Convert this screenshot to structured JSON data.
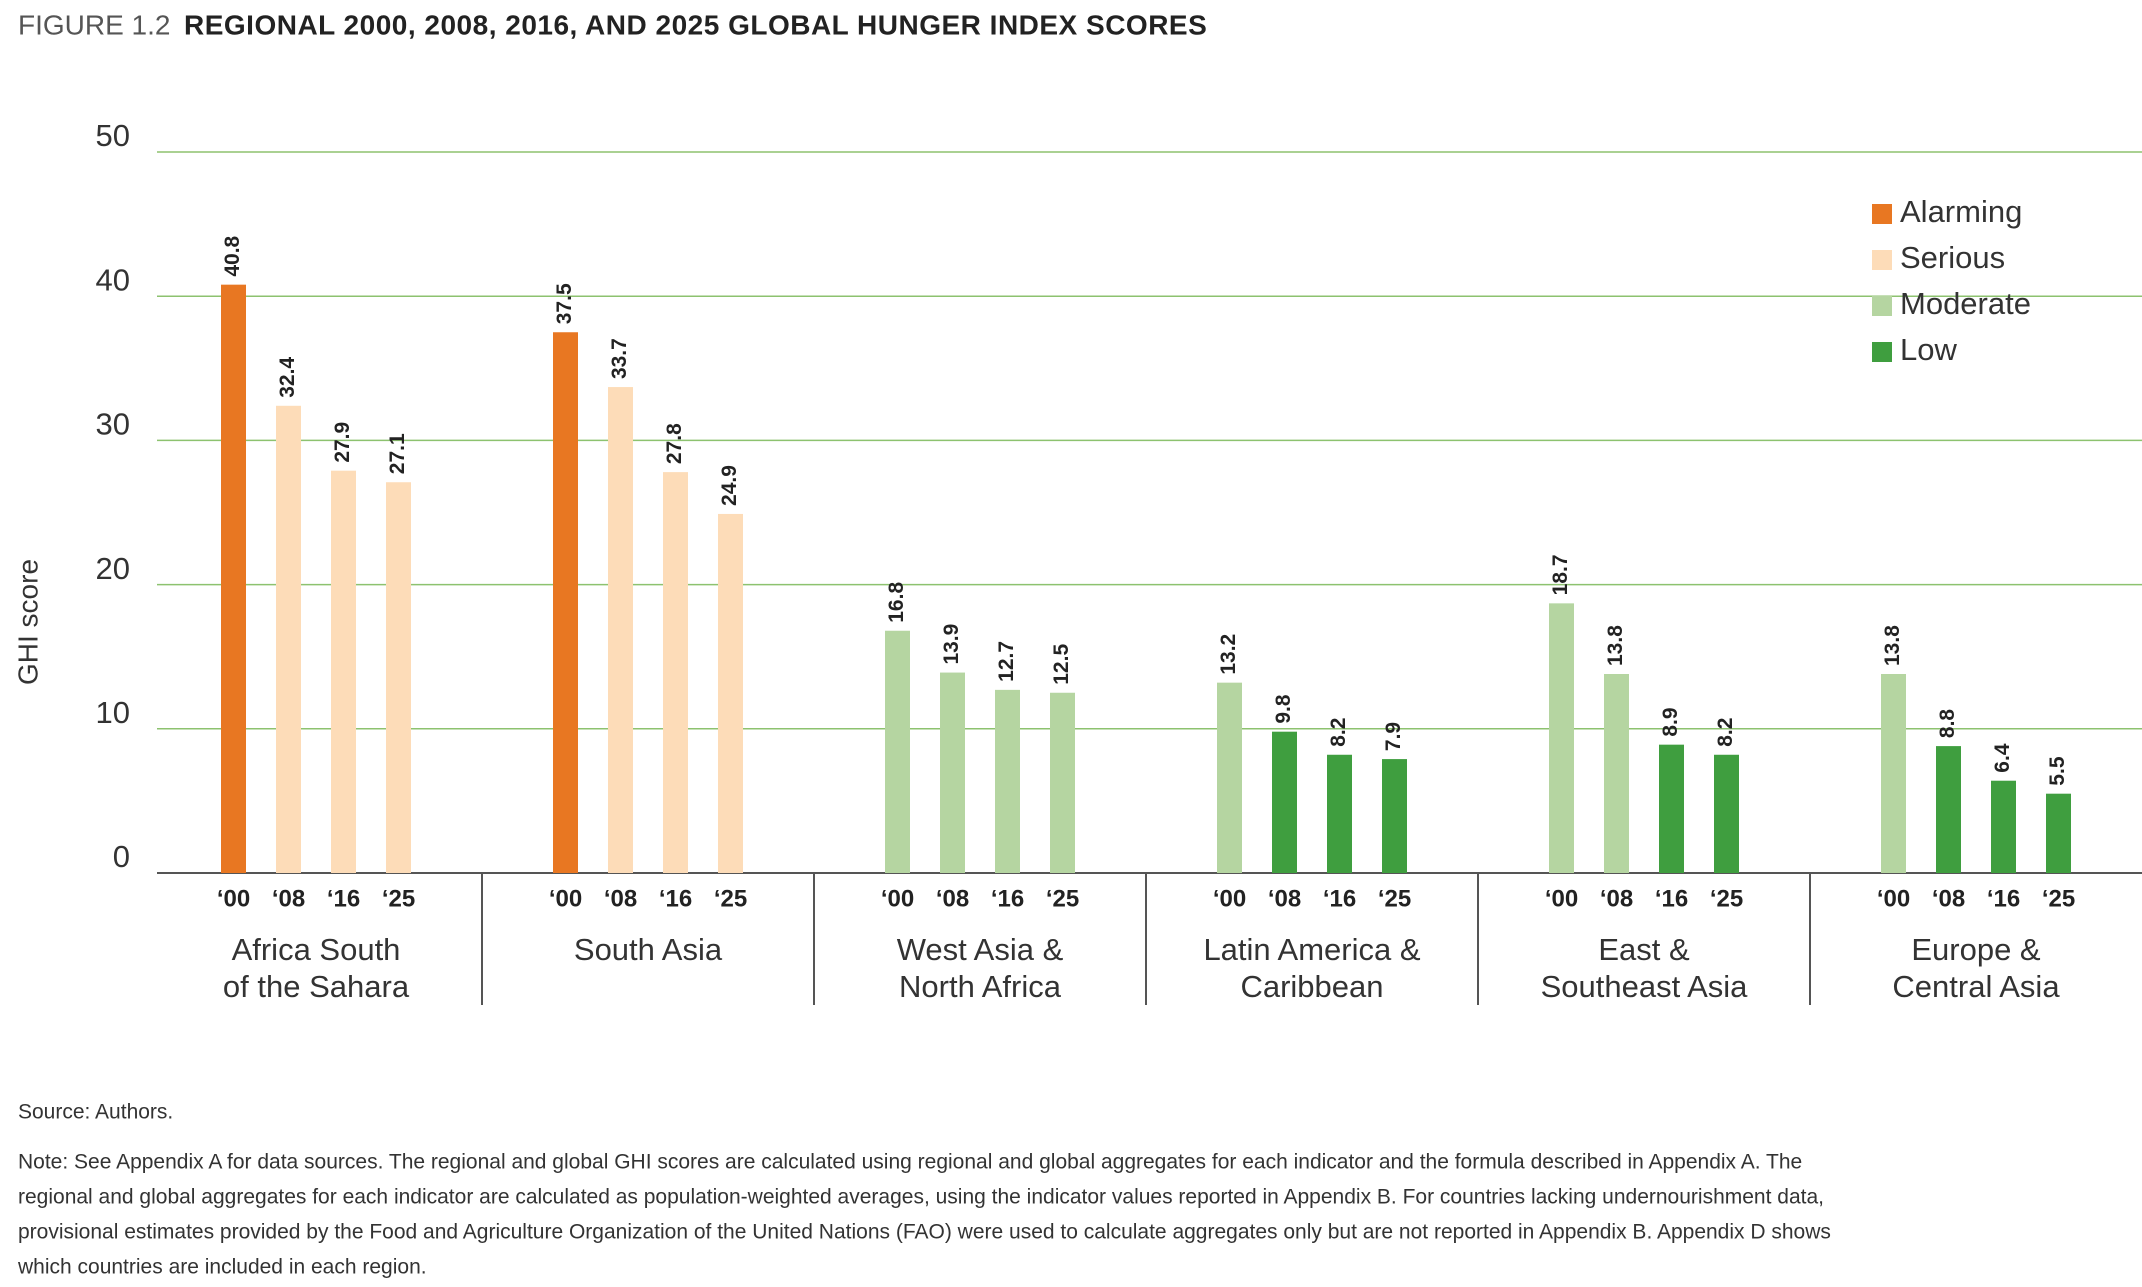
{
  "chart_data": {
    "type": "bar",
    "figure_label": "FIGURE 1.2",
    "title": "REGIONAL 2000, 2008, 2016, AND 2025 GLOBAL HUNGER INDEX SCORES",
    "y_label": "GHI score",
    "ylim": [
      0,
      50
    ],
    "yticks": [
      0,
      10,
      20,
      30,
      40,
      50
    ],
    "grid": true,
    "grid_color": "#8dc26f",
    "years": [
      "‘00",
      "‘08",
      "‘16",
      "‘25"
    ],
    "groups": [
      {
        "label": [
          "Africa South",
          "of the Sahara"
        ],
        "values": [
          40.8,
          32.4,
          27.9,
          27.1
        ],
        "colors": [
          "#e87722",
          "#fddcb8",
          "#fddcb8",
          "#fddcb8"
        ]
      },
      {
        "label": [
          "South Asia"
        ],
        "values": [
          37.5,
          33.7,
          27.8,
          24.9
        ],
        "colors": [
          "#e87722",
          "#fddcb8",
          "#fddcb8",
          "#fddcb8"
        ]
      },
      {
        "label": [
          "West Asia &",
          "North Africa"
        ],
        "values": [
          16.8,
          13.9,
          12.7,
          12.5
        ],
        "colors": [
          "#b5d5a1",
          "#b5d5a1",
          "#b5d5a1",
          "#b5d5a1"
        ]
      },
      {
        "label": [
          "Latin America &",
          "Caribbean"
        ],
        "values": [
          13.2,
          9.8,
          8.2,
          7.9
        ],
        "colors": [
          "#b5d5a1",
          "#3f9e3f",
          "#3f9e3f",
          "#3f9e3f"
        ]
      },
      {
        "label": [
          "East &",
          "Southeast Asia"
        ],
        "values": [
          18.7,
          13.8,
          8.9,
          8.2
        ],
        "colors": [
          "#b5d5a1",
          "#b5d5a1",
          "#3f9e3f",
          "#3f9e3f"
        ]
      },
      {
        "label": [
          "Europe &",
          "Central Asia"
        ],
        "values": [
          13.8,
          8.8,
          6.4,
          5.5
        ],
        "colors": [
          "#b5d5a1",
          "#3f9e3f",
          "#3f9e3f",
          "#3f9e3f"
        ]
      }
    ],
    "legend_position": "upper right",
    "legend": [
      {
        "name": "Alarming",
        "color": "#e87722"
      },
      {
        "name": "Serious",
        "color": "#fddcb8"
      },
      {
        "name": "Moderate",
        "color": "#b5d5a1"
      },
      {
        "name": "Low",
        "color": "#3f9e3f"
      }
    ],
    "source": "Source: Authors.",
    "note": [
      "Note: See Appendix A for data sources. The regional and global GHI scores are calculated using regional and global aggregates for each indicator and the formula described in Appendix A. The",
      "regional and global aggregates for each indicator are calculated as population-weighted averages, using the indicator values reported in Appendix B. For countries lacking undernourishment data,",
      "provisional estimates provided by the Food and Agriculture Organization of the United Nations (FAO) were used to calculate aggregates only but are not reported in Appendix B. Appendix D shows",
      "which countries are included in each region."
    ]
  }
}
